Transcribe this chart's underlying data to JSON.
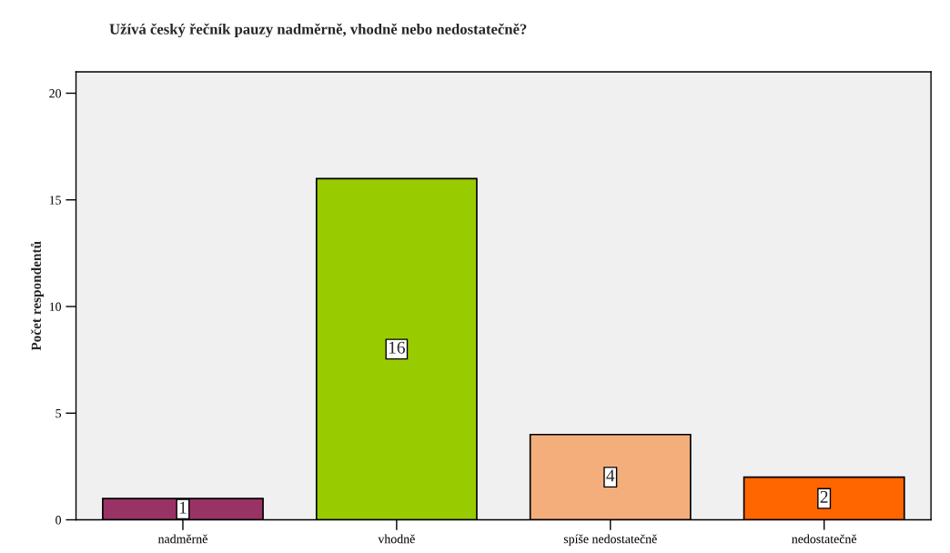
{
  "chart_data": {
    "type": "bar",
    "title": "Užívá český řečník pauzy nadměrně, vhodně nebo nedostatečně?",
    "ylabel": "Počet respondentů",
    "categories": [
      "nadměrně",
      "vhodně",
      "spíše nedostatečně",
      "nedostatečně"
    ],
    "values": [
      1,
      16,
      4,
      2
    ],
    "colors": [
      "#993366",
      "#99cc00",
      "#f4ae7c",
      "#ff6600"
    ],
    "ylim": [
      0,
      21
    ],
    "yticks": [
      0,
      5,
      10,
      15,
      20
    ],
    "data_labels": true,
    "grid": false
  }
}
